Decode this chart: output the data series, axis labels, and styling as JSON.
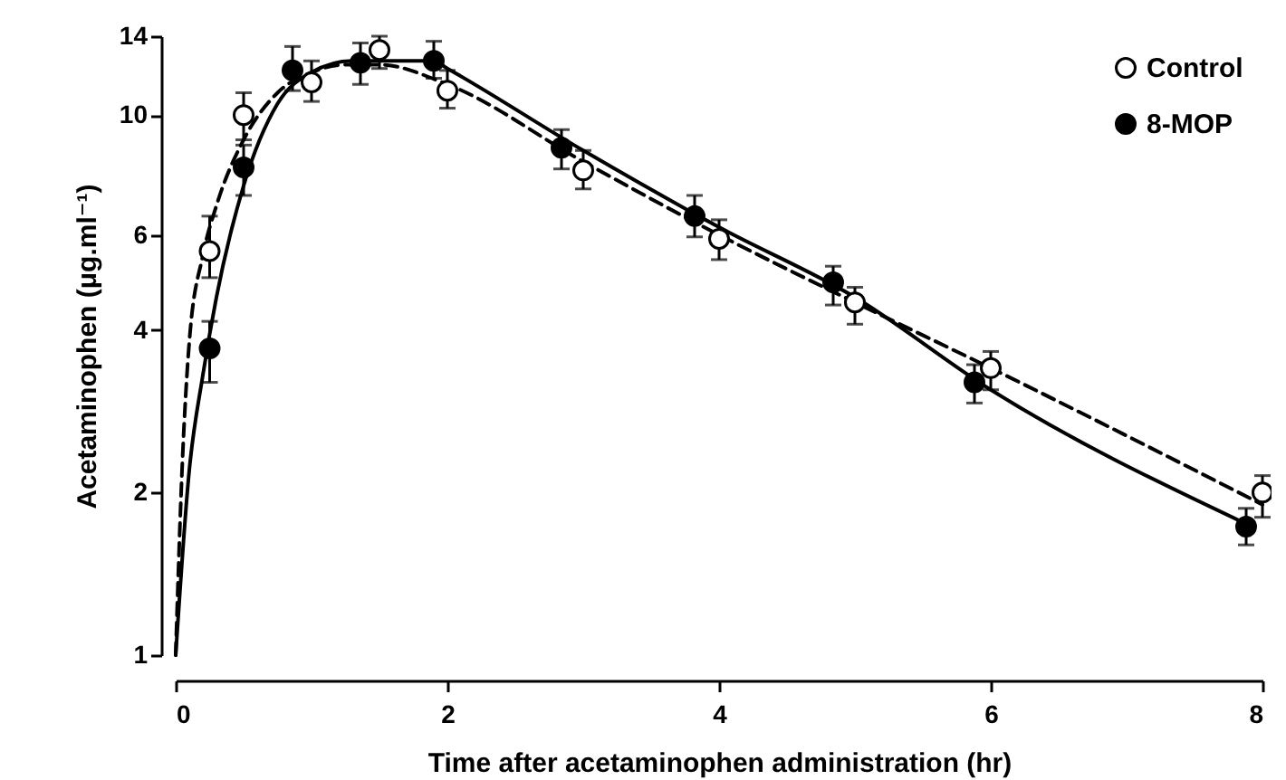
{
  "chart_data": {
    "type": "scatter",
    "xlabel": "Time after acetaminophen administration (hr)",
    "ylabel": "Acetaminophen (μg.ml⁻¹)",
    "xlim": [
      0,
      8
    ],
    "xticks": [
      0,
      2,
      4,
      6,
      8
    ],
    "ylim": [
      1,
      14
    ],
    "yticks": [
      1,
      2,
      4,
      6,
      10,
      14
    ],
    "log": "y",
    "grid": false,
    "legend": "top right",
    "series": [
      {
        "name": "Control",
        "color": "#ffffff",
        "marker": "circle",
        "x": [
          0.25,
          0.5,
          1.0,
          1.5,
          2.0,
          3.0,
          4.0,
          5.0,
          6.0,
          8.0
        ],
        "values": [
          5.6,
          10.0,
          11.5,
          13.2,
          11.1,
          7.9,
          5.9,
          4.5,
          3.4,
          2.0
        ],
        "errors": [
          [
            5.0,
            6.5
          ],
          [
            9.0,
            11.0
          ],
          [
            10.6,
            12.6
          ],
          [
            12.2,
            14.0
          ],
          [
            10.3,
            12.1
          ],
          [
            7.3,
            8.6
          ],
          [
            5.4,
            6.4
          ],
          [
            4.1,
            4.8
          ],
          [
            3.1,
            3.65
          ],
          [
            1.8,
            2.15
          ]
        ]
      },
      {
        "name": "8-MOP",
        "color": "#000000",
        "marker": "circle",
        "x": [
          0.25,
          0.5,
          0.86,
          1.36,
          1.9,
          2.84,
          3.82,
          4.84,
          5.88,
          7.88
        ],
        "values": [
          3.7,
          8.0,
          12.1,
          12.5,
          12.6,
          8.7,
          6.5,
          4.9,
          3.2,
          1.73
        ],
        "errors": [
          [
            3.2,
            4.15
          ],
          [
            7.1,
            8.8
          ],
          [
            11.1,
            13.4
          ],
          [
            11.4,
            13.6
          ],
          [
            11.7,
            13.7
          ],
          [
            7.95,
            9.4
          ],
          [
            5.95,
            7.1
          ],
          [
            4.45,
            5.25
          ],
          [
            2.93,
            3.45
          ],
          [
            1.6,
            1.87
          ]
        ]
      },
      {
        "type": "line",
        "color": "#000000",
        "line_style": "dashed",
        "marker": "none",
        "x": [
          0,
          0.05,
          0.1,
          0.2,
          0.3,
          0.5,
          0.75,
          1.0,
          1.25,
          1.5,
          2.0,
          3.0,
          4.0,
          5.0,
          6.0,
          8.0
        ],
        "values": [
          1,
          2.3,
          3.8,
          5.5,
          6.8,
          9.0,
          11.0,
          12.0,
          12.4,
          12.4,
          11.4,
          8.2,
          6.0,
          4.5,
          3.4,
          1.9
        ]
      },
      {
        "type": "line",
        "color": "#000000",
        "line_style": "solid",
        "marker": "none",
        "x": [
          0,
          0.1,
          0.2,
          0.3,
          0.5,
          0.75,
          1.0,
          1.3,
          1.5,
          1.9,
          2.0,
          3.0,
          4.0,
          5.0,
          6.0,
          7.88
        ],
        "values": [
          1,
          2.2,
          3.3,
          4.6,
          7.4,
          10.5,
          12.0,
          12.6,
          12.6,
          12.6,
          12.2,
          8.6,
          6.2,
          4.6,
          3.1,
          1.75
        ]
      }
    ]
  }
}
